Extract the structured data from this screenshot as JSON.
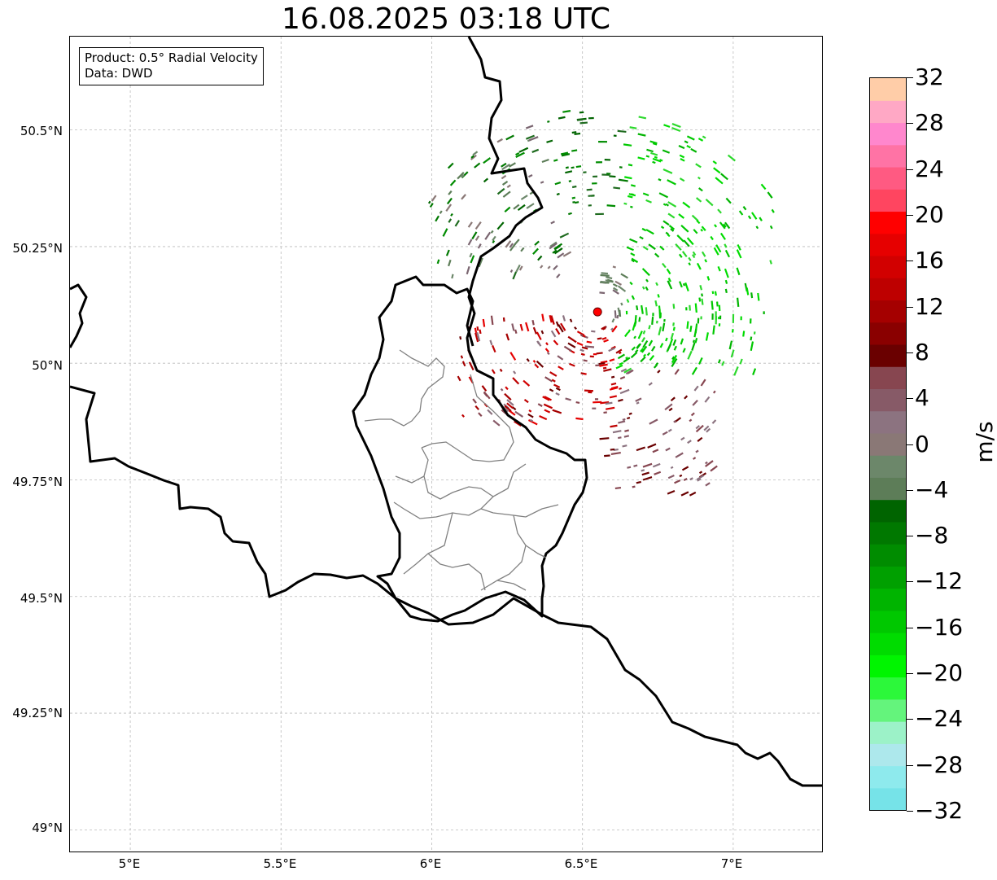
{
  "title": "16.08.2025 03:18 UTC",
  "info_box": {
    "line1": "Product: 0.5° Radial Velocity",
    "line2": "Data: DWD"
  },
  "map": {
    "lon_range": [
      4.8,
      7.3
    ],
    "lat_range": [
      48.95,
      50.7
    ],
    "x_tick_labels": [
      "5°E",
      "5.5°E",
      "6°E",
      "6.5°E",
      "7°E"
    ],
    "x_tick_values": [
      5.0,
      5.5,
      6.0,
      6.5,
      7.0
    ],
    "y_tick_labels": [
      "49°N",
      "49.25°N",
      "49.5°N",
      "49.75°N",
      "50°N",
      "50.25°N",
      "50.5°N"
    ],
    "y_tick_values": [
      49.0,
      49.25,
      49.5,
      49.75,
      50.0,
      50.25,
      50.5
    ],
    "gridlines": true,
    "radar_site": {
      "lon": 6.55,
      "lat": 50.11,
      "color": "#ff0000"
    }
  },
  "colorbar": {
    "unit": "m/s",
    "range": [
      -32,
      32
    ],
    "tick_labels": [
      "32",
      "28",
      "24",
      "20",
      "16",
      "12",
      "8",
      "4",
      "0",
      "−4",
      "−8",
      "−12",
      "−16",
      "−20",
      "−24",
      "−28",
      "−32"
    ],
    "colors_bottom_to_top": [
      "#76e3e8",
      "#8eeaed",
      "#ade8ec",
      "#9cf2c8",
      "#64f47c",
      "#2cf83a",
      "#00f500",
      "#00dc00",
      "#00c800",
      "#00b400",
      "#00a000",
      "#008c00",
      "#007800",
      "#006400",
      "#5d7d58",
      "#6c876a",
      "#8a7876",
      "#8c7380",
      "#875a67",
      "#874650",
      "#6a0000",
      "#8a0000",
      "#a50000",
      "#be0000",
      "#d20000",
      "#e60000",
      "#ff0000",
      "#ff4560",
      "#ff5a82",
      "#ff73a5",
      "#ff87cd",
      "#ffa8c5",
      "#ffcda8"
    ]
  }
}
